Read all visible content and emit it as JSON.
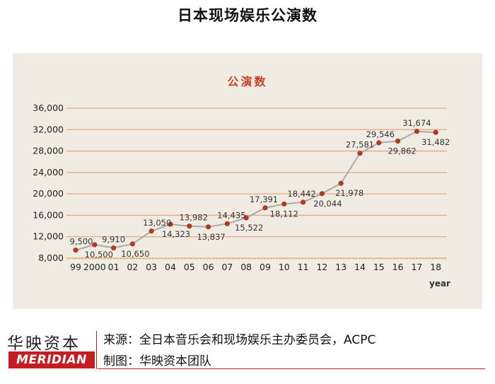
{
  "page": {
    "title": "日本现场娱乐公演数"
  },
  "footer": {
    "brand_cn": "华映资本",
    "brand_en": "MERIDIAN",
    "source": "来源：全日本音乐会和现场娱乐主办委员会，ACPC",
    "credit": "制图：华映资本团队"
  },
  "colors": {
    "panel_bg": "#f1ece3",
    "gridline": "#e0a882",
    "series_line": "#a9a9a9",
    "marker": "#b23a1c",
    "title_red": "#c7442a",
    "brand_red": "#c41e24"
  },
  "chart_data": {
    "type": "line",
    "title": "公演数",
    "xlabel": "year",
    "ylabel": "",
    "ylim": [
      8000,
      36000
    ],
    "yticks": [
      "8,000",
      "12,000",
      "16,000",
      "20,000",
      "24,000",
      "28,000",
      "32,000",
      "36,000"
    ],
    "ytick_values": [
      8000,
      12000,
      16000,
      20000,
      24000,
      28000,
      32000,
      36000
    ],
    "grid": true,
    "legend": "none",
    "categories": [
      "99",
      "2000",
      "01",
      "02",
      "03",
      "04",
      "05",
      "06",
      "07",
      "08",
      "09",
      "10",
      "11",
      "12",
      "13",
      "14",
      "15",
      "16",
      "17",
      "18"
    ],
    "series": [
      {
        "values": [
          9500,
          10500,
          9910,
          10650,
          13050,
          14323,
          13982,
          13837,
          14435,
          15522,
          17391,
          18112,
          18442,
          20044,
          21978,
          27581,
          29546,
          29862,
          31674,
          31482
        ],
        "labels": [
          "9,500",
          "10,500",
          "9,910",
          "10,650",
          "13,050",
          "14,323",
          "13,982",
          "13,837",
          "14,435",
          "15,522",
          "17,391",
          "18,112",
          "18,442",
          "20,044",
          "21,978",
          "27,581",
          "29,546",
          "29,862",
          "31,674",
          "31,482"
        ]
      }
    ]
  }
}
